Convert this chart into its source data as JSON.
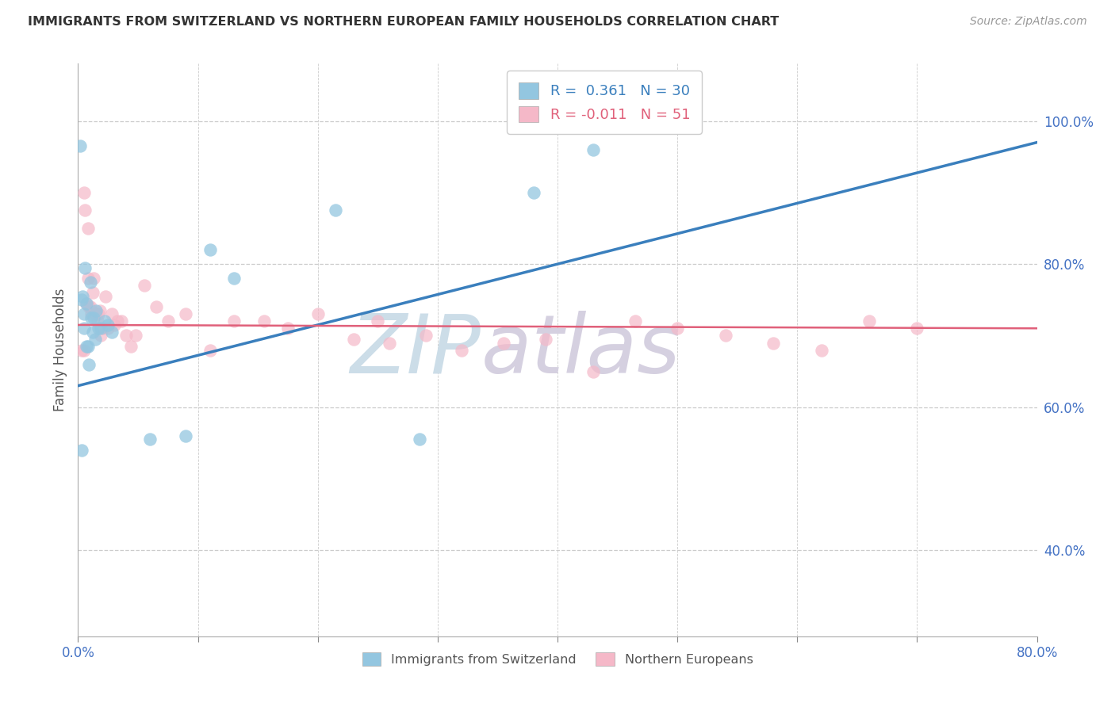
{
  "title": "IMMIGRANTS FROM SWITZERLAND VS NORTHERN EUROPEAN FAMILY HOUSEHOLDS CORRELATION CHART",
  "source": "Source: ZipAtlas.com",
  "ylabel": "Family Households",
  "legend_label1": "Immigrants from Switzerland",
  "legend_label2": "Northern Europeans",
  "r1": 0.361,
  "n1": 30,
  "r2": -0.011,
  "n2": 51,
  "color1": "#93c6e0",
  "color2": "#f5b8c8",
  "line_color1": "#3a7fbd",
  "line_color2": "#e0607a",
  "xlim": [
    0.0,
    0.8
  ],
  "ylim": [
    0.28,
    1.08
  ],
  "x_ticks": [
    0.0,
    0.1,
    0.2,
    0.3,
    0.4,
    0.5,
    0.6,
    0.7,
    0.8
  ],
  "y_ticks_right": [
    1.0,
    0.8,
    0.6,
    0.4
  ],
  "y_tick_labels_right": [
    "100.0%",
    "80.0%",
    "60.0%",
    "40.0%"
  ],
  "grid_color": "#cccccc",
  "blue_x": [
    0.002,
    0.003,
    0.004,
    0.005,
    0.005,
    0.006,
    0.007,
    0.007,
    0.008,
    0.009,
    0.01,
    0.011,
    0.012,
    0.013,
    0.014,
    0.015,
    0.017,
    0.019,
    0.022,
    0.025,
    0.028,
    0.06,
    0.09,
    0.11,
    0.13,
    0.215,
    0.285,
    0.38,
    0.43,
    0.003
  ],
  "blue_y": [
    0.965,
    0.75,
    0.755,
    0.73,
    0.71,
    0.795,
    0.685,
    0.745,
    0.685,
    0.66,
    0.775,
    0.725,
    0.705,
    0.725,
    0.695,
    0.735,
    0.71,
    0.71,
    0.72,
    0.715,
    0.705,
    0.555,
    0.56,
    0.82,
    0.78,
    0.875,
    0.555,
    0.9,
    0.96,
    0.54
  ],
  "pink_x": [
    0.003,
    0.005,
    0.006,
    0.007,
    0.008,
    0.009,
    0.01,
    0.011,
    0.012,
    0.013,
    0.015,
    0.016,
    0.017,
    0.018,
    0.019,
    0.021,
    0.023,
    0.025,
    0.028,
    0.03,
    0.033,
    0.036,
    0.04,
    0.044,
    0.048,
    0.055,
    0.065,
    0.075,
    0.09,
    0.11,
    0.13,
    0.155,
    0.175,
    0.2,
    0.23,
    0.26,
    0.29,
    0.32,
    0.355,
    0.39,
    0.43,
    0.465,
    0.5,
    0.54,
    0.58,
    0.62,
    0.66,
    0.7,
    0.005,
    0.008,
    0.25
  ],
  "pink_y": [
    0.68,
    0.9,
    0.875,
    0.745,
    0.78,
    0.74,
    0.74,
    0.73,
    0.76,
    0.78,
    0.73,
    0.72,
    0.73,
    0.735,
    0.7,
    0.71,
    0.755,
    0.71,
    0.73,
    0.715,
    0.72,
    0.72,
    0.7,
    0.685,
    0.7,
    0.77,
    0.74,
    0.72,
    0.73,
    0.68,
    0.72,
    0.72,
    0.71,
    0.73,
    0.695,
    0.69,
    0.7,
    0.68,
    0.69,
    0.695,
    0.65,
    0.72,
    0.71,
    0.7,
    0.69,
    0.68,
    0.72,
    0.71,
    0.68,
    0.85,
    0.72
  ],
  "watermark_zip_color": "#ccdde8",
  "watermark_atlas_color": "#d5d0e0"
}
